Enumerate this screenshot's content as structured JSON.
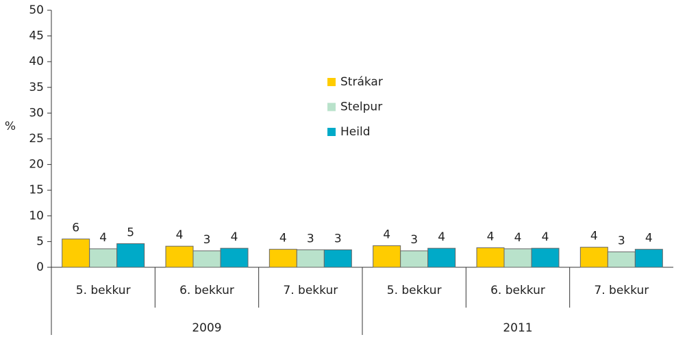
{
  "chart_data": {
    "type": "bar",
    "y_label": "%",
    "categories": [
      "5. bekkur",
      "6. bekkur",
      "7. bekkur",
      "5. bekkur",
      "6. bekkur",
      "7. bekkur"
    ],
    "group_labels": [
      "2009",
      "2011"
    ],
    "series": [
      {
        "name": "Strákar",
        "color": "#ffcc00",
        "values": [
          5.5,
          4.1,
          3.5,
          4.2,
          3.8,
          3.9
        ],
        "value_labels": [
          "6",
          "4",
          "4",
          "4",
          "4",
          "4"
        ]
      },
      {
        "name": "Stelpur",
        "color": "#b9e2cb",
        "values": [
          3.6,
          3.2,
          3.4,
          3.2,
          3.6,
          3.0
        ],
        "value_labels": [
          "4",
          "3",
          "3",
          "3",
          "4",
          "3"
        ]
      },
      {
        "name": "Heild",
        "color": "#00aac8",
        "values": [
          4.6,
          3.7,
          3.4,
          3.7,
          3.7,
          3.5
        ],
        "value_labels": [
          "5",
          "4",
          "3",
          "4",
          "4",
          "4"
        ]
      }
    ],
    "ylim": [
      0,
      50
    ],
    "yticks": [
      0,
      5,
      10,
      15,
      20,
      25,
      30,
      35,
      40,
      45,
      50
    ],
    "grid": false
  }
}
